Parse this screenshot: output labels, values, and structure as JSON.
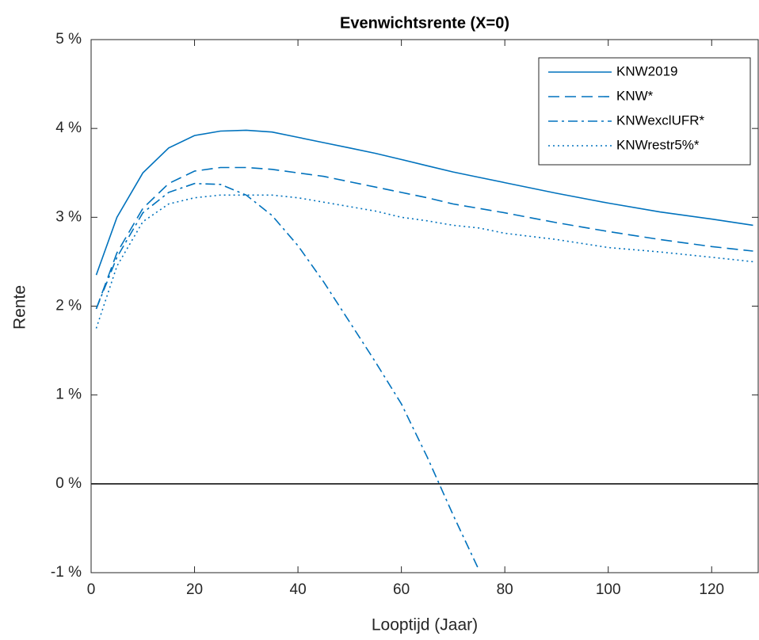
{
  "chart_data": {
    "type": "line",
    "title": "Evenwichtsrente (X=0)",
    "x_label": "Looptijd (Jaar)",
    "y_label": "Rente",
    "x": [
      1,
      5,
      10,
      15,
      20,
      25,
      30,
      35,
      40,
      45,
      50,
      55,
      60,
      65,
      70,
      75,
      80,
      90,
      100,
      110,
      120,
      128
    ],
    "series": [
      {
        "name": "KNW2019",
        "color": "#0072bd",
        "dash": "solid",
        "values": [
          2.35,
          3.0,
          3.5,
          3.78,
          3.92,
          3.97,
          3.98,
          3.96,
          3.9,
          3.84,
          3.78,
          3.72,
          3.65,
          3.58,
          3.51,
          3.45,
          3.39,
          3.27,
          3.16,
          3.06,
          2.98,
          2.91
        ]
      },
      {
        "name": "KNW*",
        "color": "#0072bd",
        "dash": "dashed",
        "values": [
          1.97,
          2.6,
          3.1,
          3.38,
          3.52,
          3.56,
          3.56,
          3.54,
          3.5,
          3.46,
          3.4,
          3.34,
          3.28,
          3.22,
          3.15,
          3.1,
          3.05,
          2.94,
          2.84,
          2.75,
          2.67,
          2.62
        ]
      },
      {
        "name": "KNWexclUFR*",
        "color": "#0072bd",
        "dash": "dashdot",
        "values": [
          1.97,
          2.55,
          3.05,
          3.28,
          3.38,
          3.37,
          3.25,
          3.02,
          2.68,
          2.27,
          1.82,
          1.37,
          0.9,
          0.3,
          -0.35,
          -0.97,
          null,
          null,
          null,
          null,
          null,
          null
        ]
      },
      {
        "name": "KNWrestr5%*",
        "color": "#0072bd",
        "dash": "dotted",
        "values": [
          1.75,
          2.45,
          2.95,
          3.15,
          3.22,
          3.25,
          3.25,
          3.25,
          3.22,
          3.17,
          3.12,
          3.07,
          3.0,
          2.96,
          2.91,
          2.88,
          2.82,
          2.75,
          2.66,
          2.61,
          2.55,
          2.5
        ]
      }
    ],
    "hlines": [
      0
    ],
    "xlim": [
      0,
      129
    ],
    "ylim": [
      -1,
      5
    ],
    "xticks": [
      0,
      20,
      40,
      60,
      80,
      100,
      120
    ],
    "yticks": [
      {
        "value": -1,
        "label": "-1 %"
      },
      {
        "value": 0,
        "label": "0 %"
      },
      {
        "value": 1,
        "label": "1 %"
      },
      {
        "value": 2,
        "label": "2 %"
      },
      {
        "value": 3,
        "label": "3 %"
      },
      {
        "value": 4,
        "label": "4 %"
      },
      {
        "value": 5,
        "label": "5 %"
      }
    ],
    "legend": "northeast"
  }
}
